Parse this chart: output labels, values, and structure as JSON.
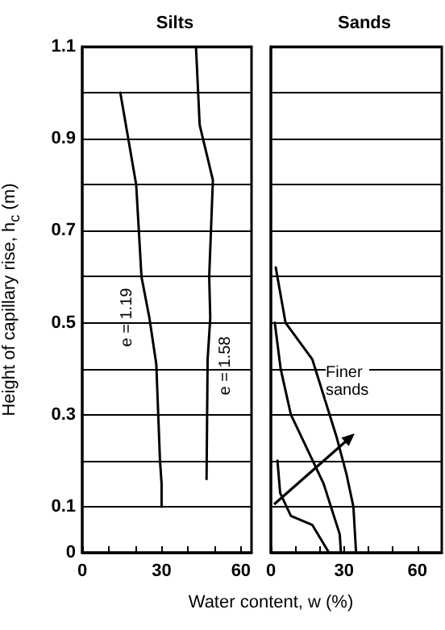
{
  "chart_data": [
    {
      "type": "line",
      "title": "Silts",
      "ylabel": "Height of capillary rise, h$_{c}$ (m)",
      "xlabel": "Water content, w (%)",
      "marker": "none",
      "line_style": "solid",
      "grid": "y",
      "legend": false,
      "xlim": [
        0,
        64
      ],
      "xticks": [
        0,
        {
          "value": 10,
          "label": null
        },
        {
          "value": 20,
          "label": null
        },
        30,
        {
          "value": 40,
          "label": null
        },
        {
          "value": 50,
          "label": null
        },
        60
      ],
      "ylim": [
        0,
        1.1
      ],
      "yticks": [
        0,
        0.1,
        {
          "value": 0.2,
          "label": null
        },
        0.3,
        {
          "value": 0.4,
          "label": null
        },
        0.5,
        {
          "value": 0.6,
          "label": null
        },
        0.7,
        {
          "value": 0.8,
          "label": null
        },
        0.9,
        {
          "value": 1.0,
          "label": null
        },
        1.1
      ],
      "series": [
        {
          "name": "e = 1.19",
          "color": "#000000",
          "x": [
            14.4,
            20.4,
            22.4,
            25.4,
            28,
            29.4,
            30,
            30
          ],
          "values": [
            1.0,
            0.8,
            0.6,
            0.51,
            0.41,
            0.2,
            0.15,
            0.1
          ]
        },
        {
          "name": "e = 1.58",
          "color": "#000000",
          "x": [
            43,
            44.4,
            49.4,
            48,
            48.4,
            47.4,
            47
          ],
          "values": [
            1.1,
            0.93,
            0.81,
            0.6,
            0.51,
            0.42,
            0.16
          ]
        }
      ]
    },
    {
      "type": "line",
      "title": "Sands",
      "marker": "none",
      "line_style": "solid",
      "grid": "y",
      "legend": false,
      "tick_labels": "x",
      "annotations": [
        "Finer sands"
      ],
      "xlim": [
        0,
        70
      ],
      "xticks": [
        0,
        {
          "value": 10,
          "label": null
        },
        {
          "value": 20,
          "label": null
        },
        30,
        {
          "value": 40,
          "label": null
        },
        {
          "value": 50,
          "label": null
        },
        60
      ],
      "ylim": [
        0,
        1.1
      ],
      "yticks": [
        0,
        {
          "value": 0.1,
          "label": null
        },
        {
          "value": 0.2,
          "label": null
        },
        {
          "value": 0.3,
          "label": null
        },
        {
          "value": 0.4,
          "label": null
        },
        {
          "value": 0.5,
          "label": null
        },
        {
          "value": 0.6,
          "label": null
        },
        {
          "value": 0.7,
          "label": null
        },
        {
          "value": 0.8,
          "label": null
        },
        {
          "value": 0.9,
          "label": null
        },
        {
          "value": 1.0,
          "label": null
        },
        {
          "value": 1.1,
          "label": null
        }
      ],
      "series": [
        {
          "color": "#000000",
          "x": [
            2,
            6,
            17,
            27,
            31,
            33.8,
            34.9
          ],
          "values": [
            0.62,
            0.5,
            0.42,
            0.25,
            0.17,
            0.1,
            0
          ]
        },
        {
          "color": "#000000",
          "x": [
            1.6,
            4,
            8.2,
            21.6,
            28.2,
            28.7
          ],
          "values": [
            0.5,
            0.4,
            0.3,
            0.15,
            0.04,
            0
          ]
        },
        {
          "color": "#000000",
          "x": [
            2.7,
            3.8,
            8.2,
            17,
            23.8
          ],
          "values": [
            0.2,
            0.13,
            0.08,
            0.06,
            0
          ]
        }
      ]
    }
  ]
}
